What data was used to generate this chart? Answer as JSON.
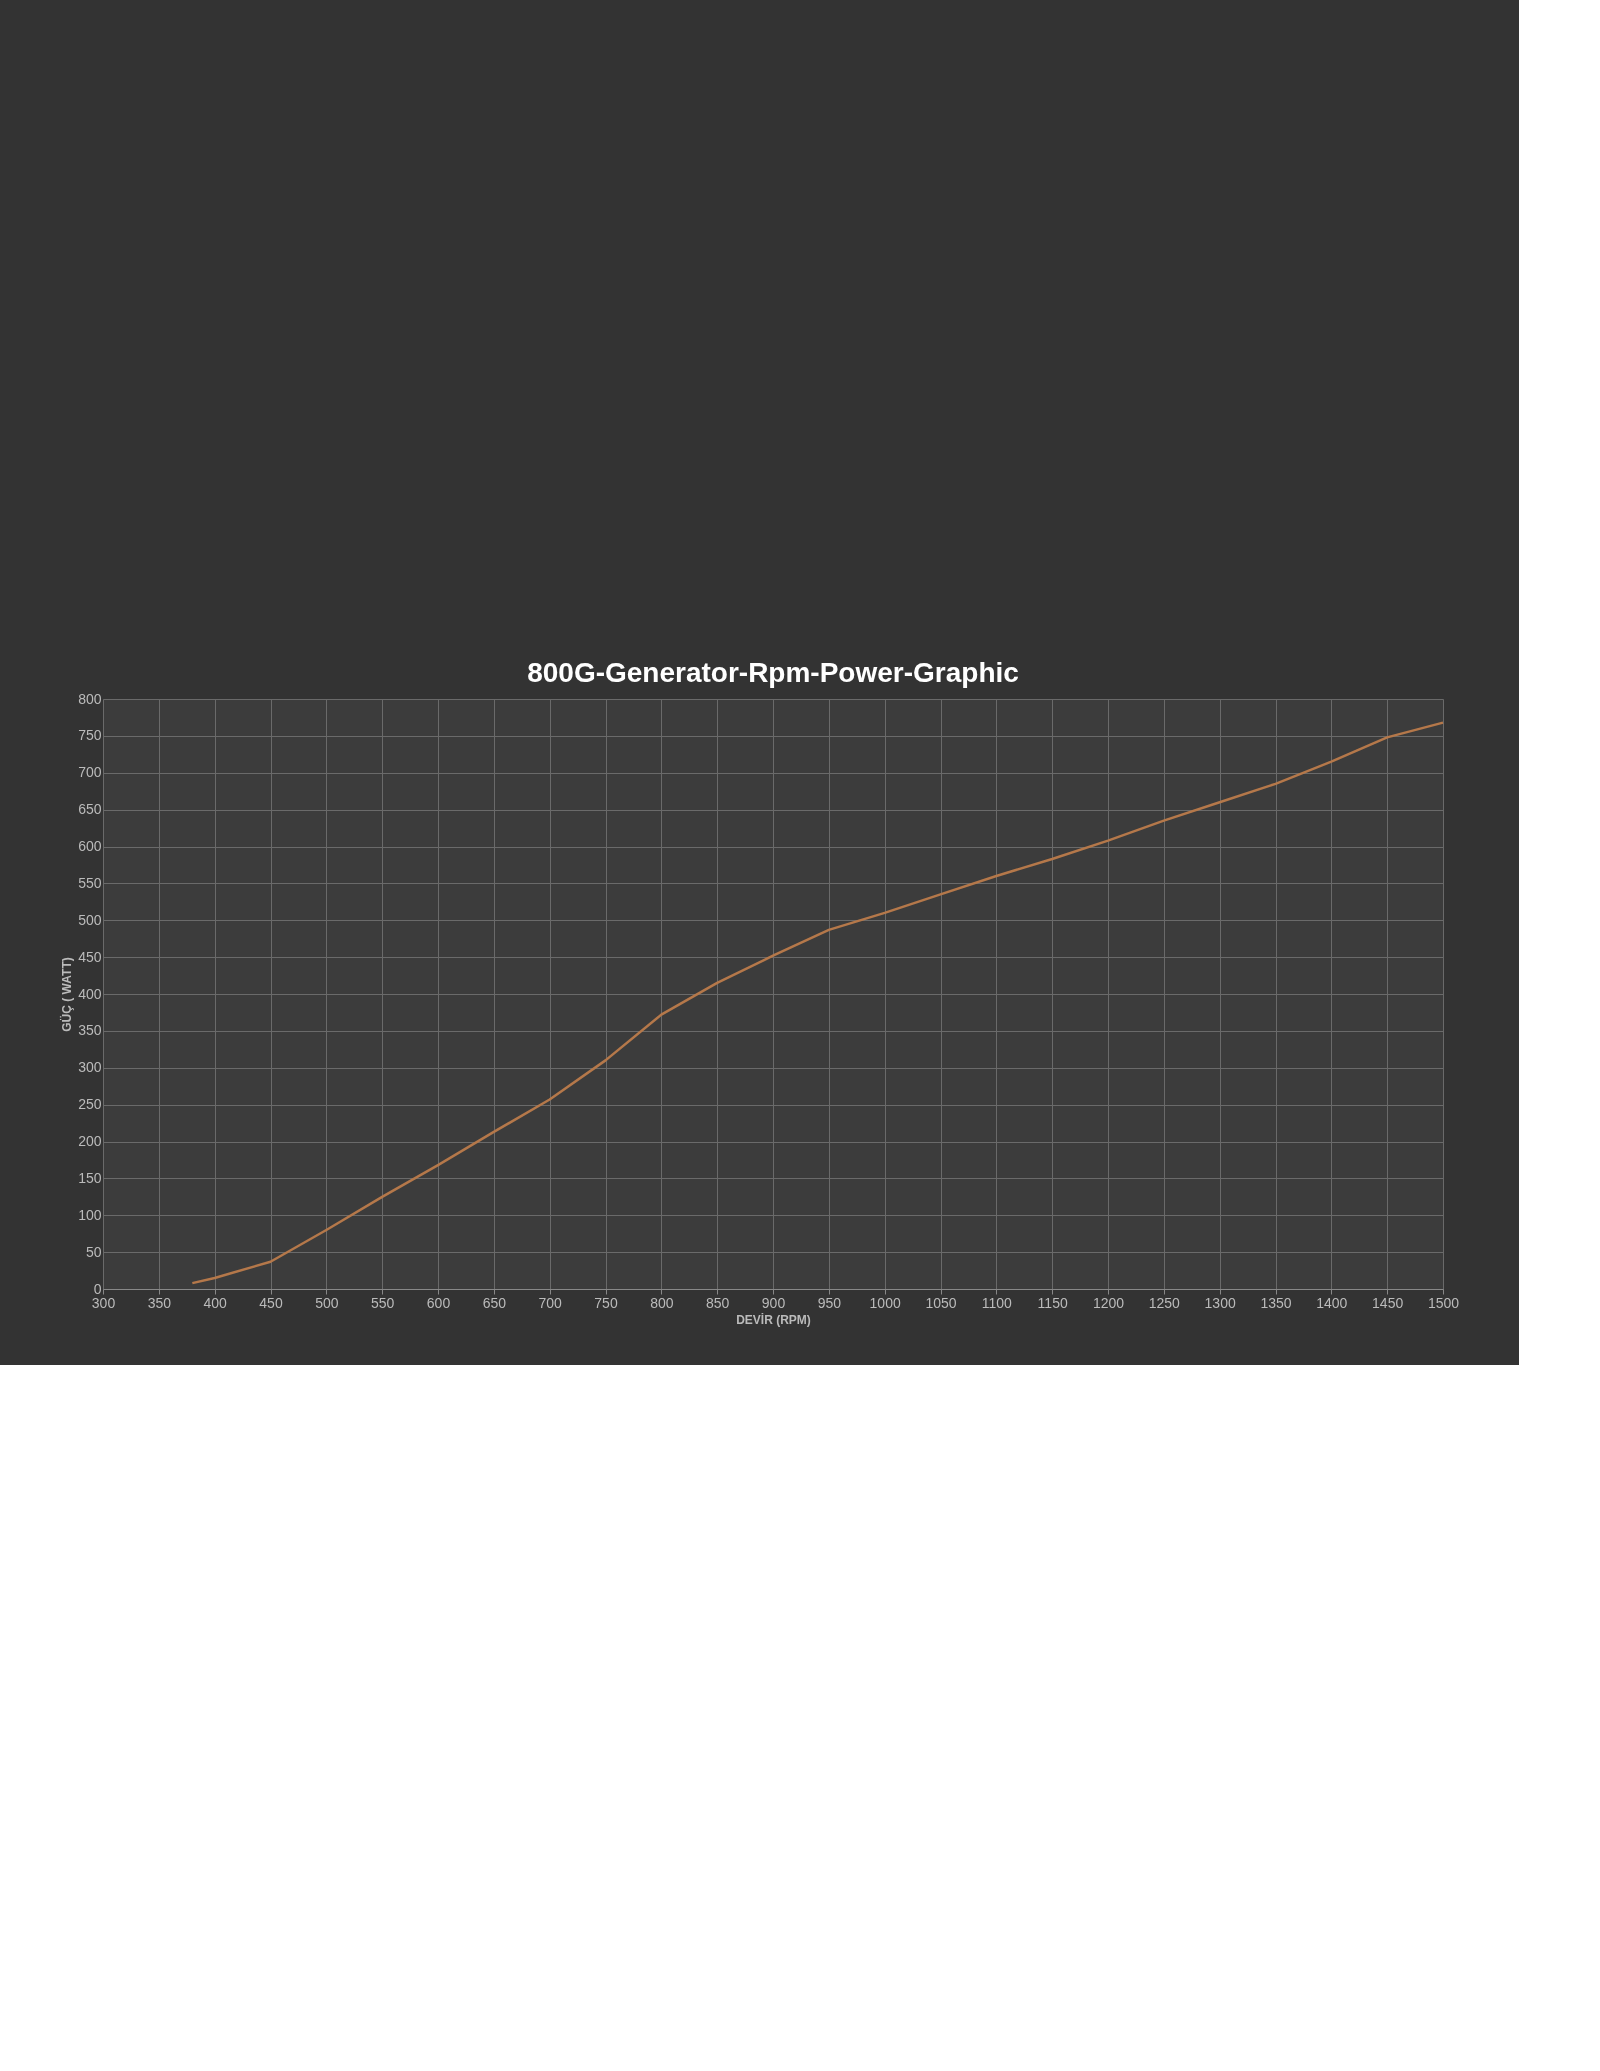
{
  "chart_data": {
    "type": "line",
    "title": "800G-Generator-Rpm-Power-Graphic",
    "xlabel": "DEVİR (RPM)",
    "ylabel": "GÜÇ ( WATT)",
    "x": [
      380,
      400,
      450,
      500,
      550,
      600,
      650,
      700,
      750,
      800,
      850,
      900,
      950,
      1000,
      1050,
      1100,
      1150,
      1200,
      1250,
      1300,
      1350,
      1400,
      1450,
      1500
    ],
    "series": [
      {
        "color": "#b5784a",
        "values": [
          8,
          15,
          37,
          80,
          125,
          168,
          213,
          257,
          310,
          372,
          415,
          452,
          487,
          510,
          535,
          560,
          583,
          608,
          635,
          660,
          685,
          715,
          748,
          768
        ]
      }
    ],
    "xlim": [
      300,
      1500
    ],
    "xticks": [
      300,
      350,
      400,
      450,
      500,
      550,
      600,
      650,
      700,
      750,
      800,
      850,
      900,
      950,
      1000,
      1050,
      1100,
      1150,
      1200,
      1250,
      1300,
      1350,
      1400,
      1450,
      1500
    ],
    "ylim": [
      0,
      800
    ],
    "yticks": [
      0,
      50,
      100,
      150,
      200,
      250,
      300,
      350,
      400,
      450,
      500,
      550,
      600,
      650,
      700,
      750,
      800
    ],
    "grid": true,
    "marker": "none",
    "line_style": "solid"
  }
}
